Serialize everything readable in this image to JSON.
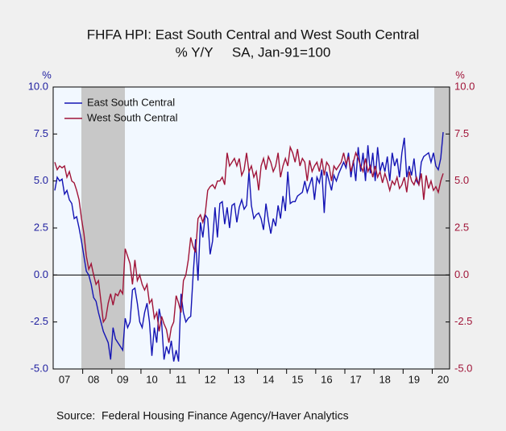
{
  "chart_data": {
    "type": "line",
    "title": "FHFA HPI: East South Central and West South Central",
    "subtitle": "% Y/Y     SA, Jan-91=100",
    "source": "Source:  Federal Housing Finance Agency/Haver Analytics",
    "y_label": "%",
    "y2_label": "%",
    "ylim": [
      -5,
      10
    ],
    "yticks": [
      {
        "value": 10,
        "label": "10.0"
      },
      {
        "value": 7.5,
        "label": "7.5"
      },
      {
        "value": 5,
        "label": "5.0"
      },
      {
        "value": 2.5,
        "label": "2.5"
      },
      {
        "value": 0,
        "label": "0.0"
      },
      {
        "value": -2.5,
        "label": "-2.5"
      },
      {
        "value": -5,
        "label": "-5.0"
      }
    ],
    "y2lim": [
      -5,
      10
    ],
    "y2ticks": [
      {
        "value": 10,
        "label": "10.0"
      },
      {
        "value": 7.5,
        "label": "7.5"
      },
      {
        "value": 5,
        "label": "5.0"
      },
      {
        "value": 2.5,
        "label": "2.5"
      },
      {
        "value": 0,
        "label": "0.0"
      },
      {
        "value": -2.5,
        "label": "-2.5"
      },
      {
        "value": -5,
        "label": "-5.0"
      }
    ],
    "legend": "upper left",
    "categories": [
      null,
      null,
      null,
      null,
      "07",
      null,
      null,
      null,
      null,
      null,
      null,
      null,
      null,
      null,
      null,
      null,
      "08",
      null,
      null,
      null,
      null,
      null,
      null,
      null,
      null,
      null,
      null,
      null,
      "09",
      null,
      null,
      null,
      null,
      null,
      null,
      null,
      null,
      null,
      null,
      null,
      "10",
      null,
      null,
      null,
      null,
      null,
      null,
      null,
      null,
      null,
      null,
      null,
      "11",
      null,
      null,
      null,
      null,
      null,
      null,
      null,
      null,
      null,
      null,
      null,
      "12",
      null,
      null,
      null,
      null,
      null,
      null,
      null,
      null,
      null,
      null,
      null,
      "13",
      null,
      null,
      null,
      null,
      null,
      null,
      null,
      null,
      null,
      null,
      null,
      "14",
      null,
      null,
      null,
      null,
      null,
      null,
      null,
      null,
      null,
      null,
      null,
      "15",
      null,
      null,
      null,
      null,
      null,
      null,
      null,
      null,
      null,
      null,
      null,
      "16",
      null,
      null,
      null,
      null,
      null,
      null,
      null,
      null,
      null,
      null,
      null,
      "17",
      null,
      null,
      null,
      null,
      null,
      null,
      null,
      null,
      null,
      null,
      null,
      "18",
      null,
      null,
      null,
      null,
      null,
      null,
      null,
      null,
      null,
      null,
      null,
      "19",
      null,
      null,
      null,
      null,
      null,
      null,
      null,
      null,
      null,
      null,
      null,
      "20"
    ],
    "series": [
      {
        "name": "East South Central",
        "color": "#1414b4",
        "values": [
          4.5,
          5.2,
          5.0,
          5.1,
          4.3,
          4.5,
          4.0,
          3.8,
          3.0,
          3.1,
          2.5,
          1.8,
          1.0,
          0.2,
          0.0,
          -0.5,
          -1.2,
          -1.4,
          -2.0,
          -2.5,
          -3.0,
          -3.3,
          -3.6,
          -4.5,
          -2.8,
          -3.4,
          -3.6,
          -3.8,
          -4.0,
          -2.3,
          -2.8,
          -2.5,
          -0.8,
          -0.7,
          -1.5,
          -2.5,
          -2.8,
          -2.0,
          -1.5,
          -2.5,
          -4.3,
          -2.8,
          -3.6,
          -1.8,
          -2.5,
          -4.5,
          -3.8,
          -4.2,
          -3.5,
          -4.6,
          -4.0,
          -4.6,
          -1.0,
          -2.0,
          -2.5,
          -2.3,
          -2.2,
          0.0,
          1.9,
          -0.3,
          2.8,
          2.0,
          3.2,
          3.0,
          1.1,
          1.8,
          3.6,
          2.0,
          3.8,
          3.9,
          2.7,
          3.6,
          2.5,
          3.7,
          3.8,
          2.8,
          3.6,
          4.0,
          3.5,
          3.7,
          5.5,
          3.7,
          3.0,
          3.2,
          3.3,
          3.0,
          2.4,
          3.8,
          2.9,
          2.2,
          3.0,
          2.6,
          3.7,
          3.0,
          4.2,
          3.4,
          5.5,
          3.8,
          3.9,
          3.9,
          4.2,
          4.3,
          4.4,
          5.0,
          4.4,
          4.8,
          5.2,
          4.0,
          5.2,
          4.9,
          5.6,
          3.3,
          5.5,
          5.0,
          4.5,
          5.3,
          5.0,
          5.4,
          5.7,
          6.0,
          5.7,
          6.5,
          5.2,
          6.1,
          5.0,
          6.8,
          5.5,
          6.5,
          5.0,
          6.9,
          5.4,
          6.5,
          5.0,
          6.8,
          5.5,
          6.0,
          5.5,
          6.3,
          5.0,
          6.5,
          5.8,
          6.2,
          5.2,
          6.5,
          7.3,
          5.2,
          5.8,
          5.3,
          6.2,
          5.0,
          4.8,
          6.0,
          6.3,
          6.4,
          6.5,
          6.0,
          6.5,
          5.8,
          5.6,
          6.2,
          7.6
        ]
      },
      {
        "name": "West South Central",
        "color": "#a01438",
        "values": [
          6.0,
          5.6,
          5.8,
          5.7,
          5.8,
          5.2,
          5.5,
          5.0,
          4.9,
          4.5,
          4.0,
          3.0,
          2.2,
          1.0,
          0.3,
          0.6,
          0.0,
          -0.5,
          -0.3,
          -1.4,
          -2.5,
          -2.3,
          -1.5,
          -1.0,
          -1.6,
          -1.0,
          -1.1,
          -0.8,
          -1.0,
          1.4,
          1.0,
          0.6,
          -0.5,
          0.8,
          -0.3,
          0.0,
          -0.5,
          -0.8,
          -0.5,
          -1.5,
          -1.3,
          -2.3,
          -2.0,
          -3.0,
          -2.2,
          -2.6,
          -2.9,
          -3.6,
          -2.8,
          -2.5,
          -1.1,
          -1.5,
          -2.0,
          -0.3,
          0.0,
          0.8,
          2.0,
          1.5,
          1.2,
          3.0,
          3.2,
          2.8,
          3.3,
          4.5,
          4.7,
          4.8,
          4.6,
          5.0,
          5.0,
          5.2,
          4.8,
          6.5,
          5.8,
          6.0,
          6.2,
          5.8,
          6.2,
          5.3,
          5.6,
          6.5,
          5.5,
          5.8,
          5.2,
          5.5,
          4.5,
          5.8,
          6.2,
          5.6,
          6.3,
          6.0,
          5.5,
          5.8,
          6.5,
          5.2,
          5.8,
          6.2,
          5.8,
          6.8,
          6.5,
          6.0,
          6.7,
          5.8,
          6.2,
          6.0,
          5.0,
          6.1,
          5.5,
          5.8,
          6.0,
          5.5,
          6.2,
          5.3,
          6.0,
          5.8,
          5.0,
          5.8,
          5.6,
          5.8,
          6.0,
          6.5,
          5.9,
          6.3,
          5.5,
          6.0,
          6.5,
          6.2,
          5.8,
          5.5,
          6.2,
          5.5,
          5.8,
          5.2,
          5.8,
          5.2,
          5.5,
          4.9,
          5.4,
          5.0,
          4.5,
          5.0,
          4.8,
          5.2,
          4.6,
          4.8,
          5.2,
          4.4,
          5.5,
          5.0,
          4.8,
          5.2,
          4.8,
          5.4,
          4.0,
          5.3,
          4.6,
          5.0,
          4.5,
          4.7,
          4.4,
          5.0,
          5.4
        ]
      }
    ]
  }
}
